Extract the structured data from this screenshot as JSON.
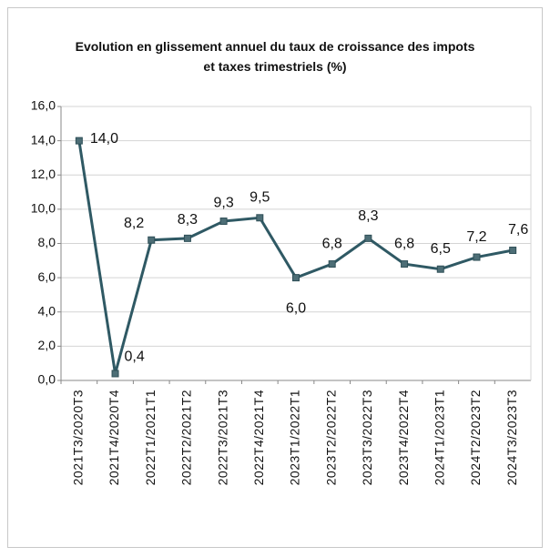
{
  "chart_data": {
    "type": "line",
    "title": "Evolution en glissement annuel du taux de croissance des impots et taxes trimestriels (%)",
    "categories": [
      "2021T3/2020T3",
      "2021T4/2020T4",
      "2022T1/2021T1",
      "2022T2/2021T2",
      "2022T3/2021T3",
      "2022T4/2021T4",
      "2023T1/2022T1",
      "2023T2/2022T2",
      "2023T3/2022T3",
      "2023T4/2022T4",
      "2024T1/2023T1",
      "2024T2/2023T2",
      "2024T3/2023T3"
    ],
    "values": [
      14.0,
      0.4,
      8.2,
      8.3,
      9.3,
      9.5,
      6.0,
      6.8,
      8.3,
      6.8,
      6.5,
      7.2,
      7.6
    ],
    "value_labels": [
      "14,0",
      "0,4",
      "8,2",
      "8,3",
      "9,3",
      "9,5",
      "6,0",
      "6,8",
      "8,3",
      "6,8",
      "6,5",
      "7,2",
      "7,6"
    ],
    "color": "#2f5964",
    "ylim": [
      0,
      16
    ],
    "yticks": [
      {
        "value": 0,
        "label": "0,0"
      },
      {
        "value": 2,
        "label": "2,0"
      },
      {
        "value": 4,
        "label": "4,0"
      },
      {
        "value": 6,
        "label": "6,0"
      },
      {
        "value": 8,
        "label": "8,0"
      },
      {
        "value": 10,
        "label": "10,0"
      },
      {
        "value": 12,
        "label": "12,0"
      },
      {
        "value": 14,
        "label": "14,0"
      },
      {
        "value": 16,
        "label": "16,0"
      }
    ],
    "grid": true
  }
}
